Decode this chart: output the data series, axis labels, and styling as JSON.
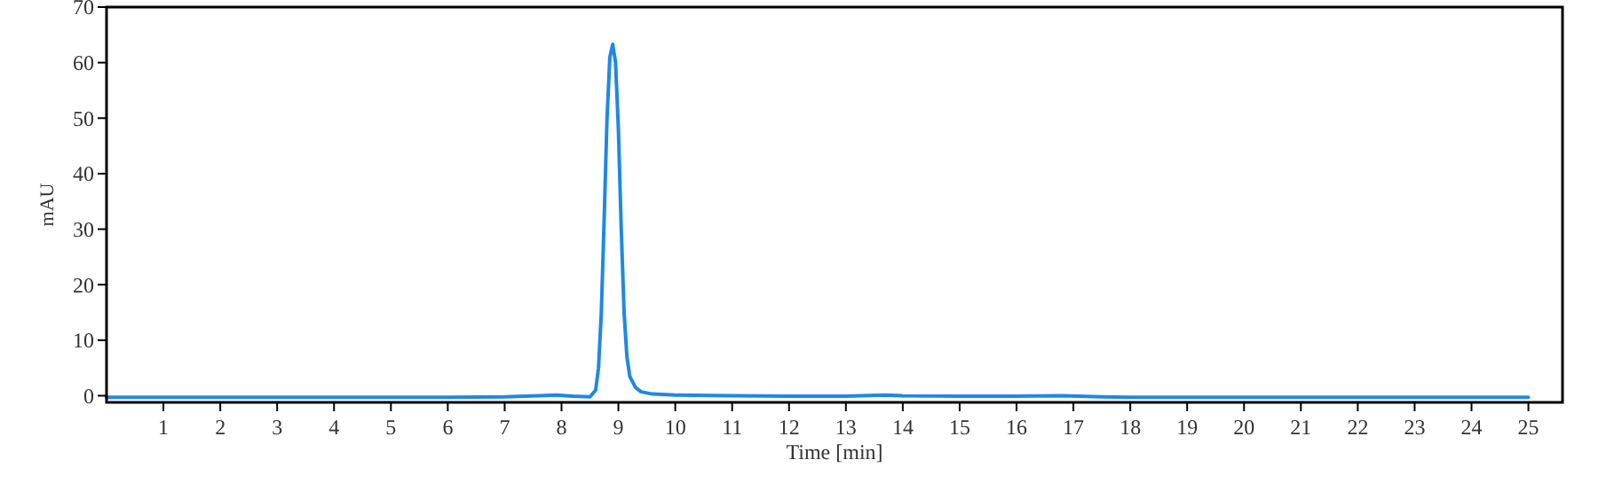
{
  "chart_data": {
    "type": "line",
    "xlabel": "Time [min]",
    "ylabel": "mAU",
    "xlim": [
      0,
      25.6
    ],
    "ylim": [
      -1.2,
      70
    ],
    "xticks": [
      1,
      2,
      3,
      4,
      5,
      6,
      7,
      8,
      9,
      10,
      11,
      12,
      13,
      14,
      15,
      16,
      17,
      18,
      19,
      20,
      21,
      22,
      23,
      24,
      25
    ],
    "yticks": [
      0,
      10,
      20,
      30,
      40,
      50,
      60,
      70
    ],
    "series": [
      {
        "color": "#1e88e5",
        "x": [
          0,
          2,
          4,
          6,
          7,
          7.6,
          7.9,
          8.2,
          8.5,
          8.6,
          8.65,
          8.7,
          8.75,
          8.8,
          8.85,
          8.9,
          8.95,
          9.0,
          9.05,
          9.1,
          9.15,
          9.2,
          9.3,
          9.4,
          9.6,
          10,
          11,
          12,
          13,
          13.7,
          14,
          15,
          16,
          16.8,
          17.5,
          18,
          20,
          22,
          24,
          25
        ],
        "values": [
          -0.3,
          -0.3,
          -0.3,
          -0.3,
          -0.2,
          0,
          0.1,
          -0.1,
          -0.2,
          1,
          5,
          15,
          32,
          50,
          61,
          63.3,
          60,
          48,
          30,
          15,
          7,
          3.5,
          1.5,
          0.7,
          0.3,
          0.1,
          0,
          -0.1,
          -0.1,
          0.1,
          0,
          -0.1,
          -0.1,
          0,
          -0.2,
          -0.3,
          -0.3,
          -0.3,
          -0.3,
          -0.3
        ]
      }
    ]
  }
}
